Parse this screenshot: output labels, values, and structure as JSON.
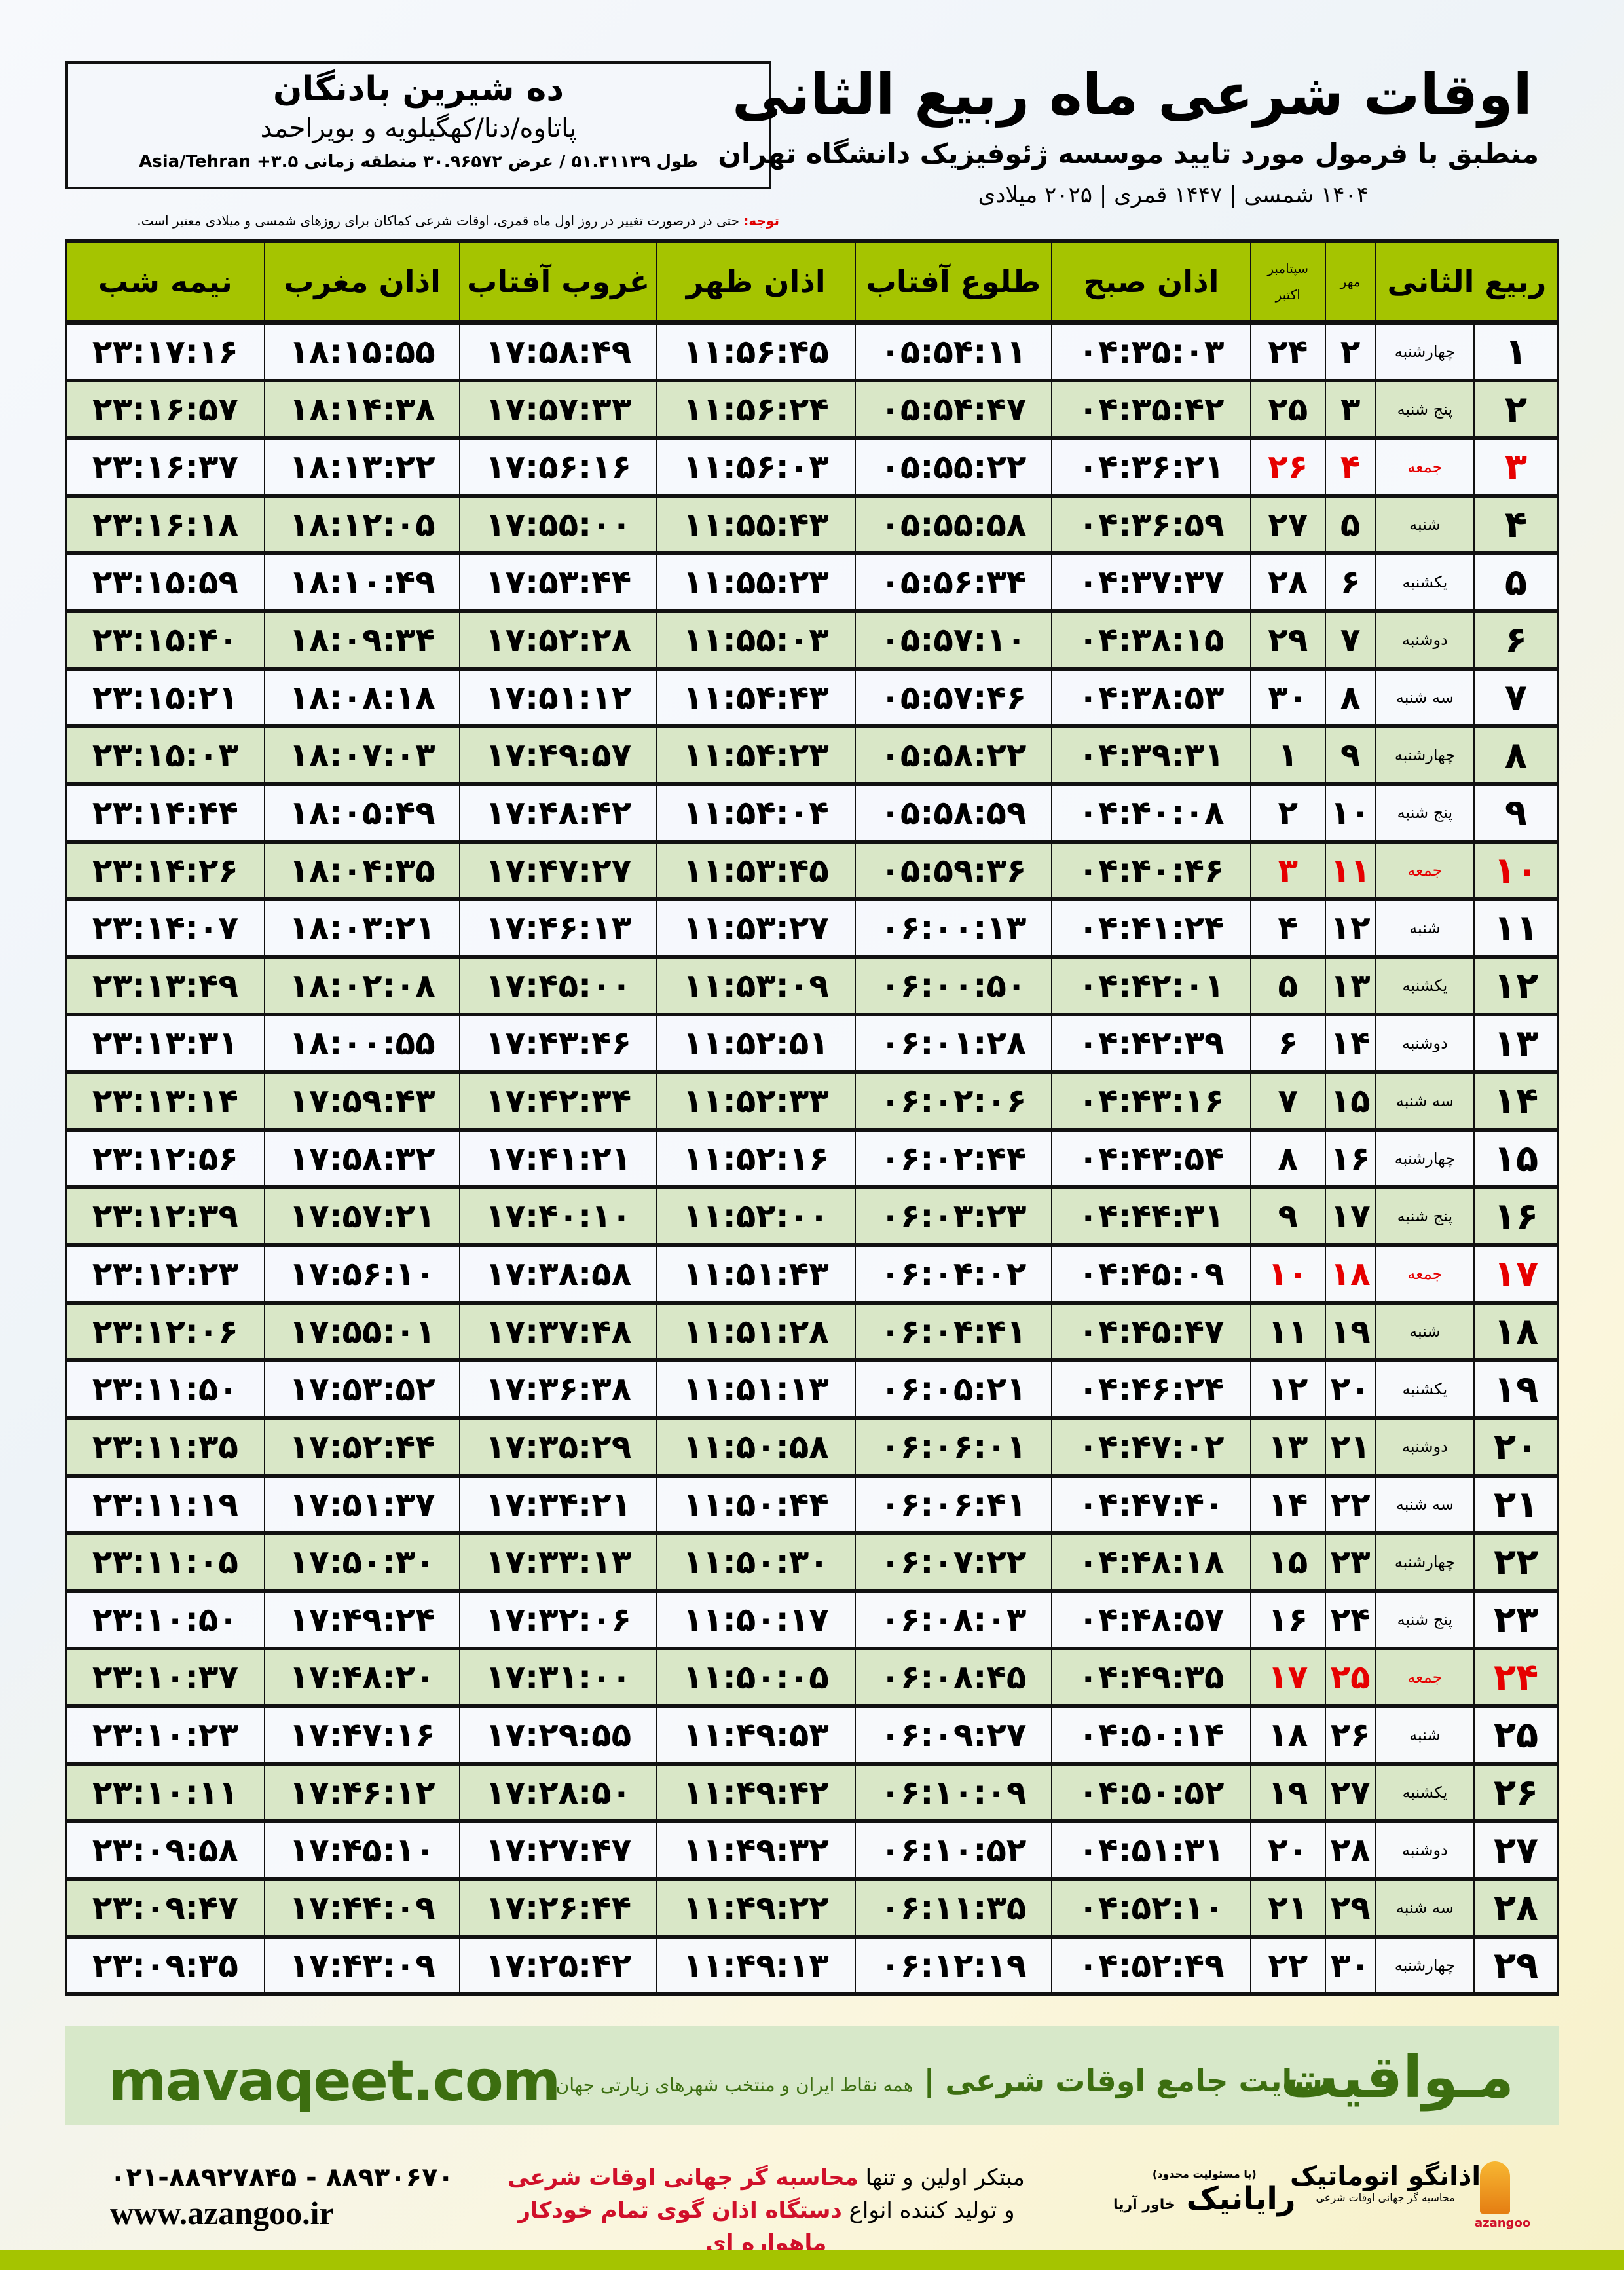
{
  "header": {
    "title": "اوقات شرعی ماه ربیع الثانی",
    "subtitle": "منطبق با فرمول مورد تایید موسسه ژئوفیزیک دانشگاه تهران",
    "years": "۱۴۰۴ شمسی | ۱۴۴۷ قمری | ۲۰۲۵ میلادی"
  },
  "location": {
    "city": "ده شیرین بادنگان",
    "province": "پاتاوه/دنا/کهگیلویه و بویراحمد",
    "coords": "طول ۵۱.۳۱۱۳۹ / عرض ۳۰.۹۶۵۷۲ منطقه زمانی Asia/Tehran +۳.۵"
  },
  "note": {
    "label": "توجه:",
    "text": " حتی در درصورت تغییر در روز اول ماه قمری، اوقات شرعی کماکان برای روزهای شمسی و میلادی معتبر است."
  },
  "table": {
    "headers": {
      "month": "ربیع الثانی",
      "mehr": "مهر",
      "sep": "سپتامبر",
      "oct": "اکتبر",
      "sobh": "اذان صبح",
      "tolu": "طلوع آفتاب",
      "zohr": "اذان ظهر",
      "ghorub": "غروب آفتاب",
      "maghreb": "اذان مغرب",
      "nime": "نیمه شب"
    },
    "holiday_color": "#e60000",
    "rows": [
      {
        "day": "۱",
        "weekday": "چهارشنبه",
        "shamsi": "۲",
        "miladi": "۲۴",
        "sobh": "۰۴:۳۵:۰۳",
        "tolu": "۰۵:۵۴:۱۱",
        "zohr": "۱۱:۵۶:۴۵",
        "ghorub": "۱۷:۵۸:۴۹",
        "maghreb": "۱۸:۱۵:۵۵",
        "nime": "۲۳:۱۷:۱۶",
        "holiday": false
      },
      {
        "day": "۲",
        "weekday": "پنج شنبه",
        "shamsi": "۳",
        "miladi": "۲۵",
        "sobh": "۰۴:۳۵:۴۲",
        "tolu": "۰۵:۵۴:۴۷",
        "zohr": "۱۱:۵۶:۲۴",
        "ghorub": "۱۷:۵۷:۳۳",
        "maghreb": "۱۸:۱۴:۳۸",
        "nime": "۲۳:۱۶:۵۷",
        "holiday": false
      },
      {
        "day": "۳",
        "weekday": "جمعه",
        "shamsi": "۴",
        "miladi": "۲۶",
        "sobh": "۰۴:۳۶:۲۱",
        "tolu": "۰۵:۵۵:۲۲",
        "zohr": "۱۱:۵۶:۰۳",
        "ghorub": "۱۷:۵۶:۱۶",
        "maghreb": "۱۸:۱۳:۲۲",
        "nime": "۲۳:۱۶:۳۷",
        "holiday": true
      },
      {
        "day": "۴",
        "weekday": "شنبه",
        "shamsi": "۵",
        "miladi": "۲۷",
        "sobh": "۰۴:۳۶:۵۹",
        "tolu": "۰۵:۵۵:۵۸",
        "zohr": "۱۱:۵۵:۴۳",
        "ghorub": "۱۷:۵۵:۰۰",
        "maghreb": "۱۸:۱۲:۰۵",
        "nime": "۲۳:۱۶:۱۸",
        "holiday": false
      },
      {
        "day": "۵",
        "weekday": "یکشنبه",
        "shamsi": "۶",
        "miladi": "۲۸",
        "sobh": "۰۴:۳۷:۳۷",
        "tolu": "۰۵:۵۶:۳۴",
        "zohr": "۱۱:۵۵:۲۳",
        "ghorub": "۱۷:۵۳:۴۴",
        "maghreb": "۱۸:۱۰:۴۹",
        "nime": "۲۳:۱۵:۵۹",
        "holiday": false
      },
      {
        "day": "۶",
        "weekday": "دوشنبه",
        "shamsi": "۷",
        "miladi": "۲۹",
        "sobh": "۰۴:۳۸:۱۵",
        "tolu": "۰۵:۵۷:۱۰",
        "zohr": "۱۱:۵۵:۰۳",
        "ghorub": "۱۷:۵۲:۲۸",
        "maghreb": "۱۸:۰۹:۳۴",
        "nime": "۲۳:۱۵:۴۰",
        "holiday": false
      },
      {
        "day": "۷",
        "weekday": "سه شنبه",
        "shamsi": "۸",
        "miladi": "۳۰",
        "sobh": "۰۴:۳۸:۵۳",
        "tolu": "۰۵:۵۷:۴۶",
        "zohr": "۱۱:۵۴:۴۳",
        "ghorub": "۱۷:۵۱:۱۲",
        "maghreb": "۱۸:۰۸:۱۸",
        "nime": "۲۳:۱۵:۲۱",
        "holiday": false
      },
      {
        "day": "۸",
        "weekday": "چهارشنبه",
        "shamsi": "۹",
        "miladi": "۱",
        "sobh": "۰۴:۳۹:۳۱",
        "tolu": "۰۵:۵۸:۲۲",
        "zohr": "۱۱:۵۴:۲۳",
        "ghorub": "۱۷:۴۹:۵۷",
        "maghreb": "۱۸:۰۷:۰۳",
        "nime": "۲۳:۱۵:۰۳",
        "holiday": false
      },
      {
        "day": "۹",
        "weekday": "پنج شنبه",
        "shamsi": "۱۰",
        "miladi": "۲",
        "sobh": "۰۴:۴۰:۰۸",
        "tolu": "۰۵:۵۸:۵۹",
        "zohr": "۱۱:۵۴:۰۴",
        "ghorub": "۱۷:۴۸:۴۲",
        "maghreb": "۱۸:۰۵:۴۹",
        "nime": "۲۳:۱۴:۴۴",
        "holiday": false
      },
      {
        "day": "۱۰",
        "weekday": "جمعه",
        "shamsi": "۱۱",
        "miladi": "۳",
        "sobh": "۰۴:۴۰:۴۶",
        "tolu": "۰۵:۵۹:۳۶",
        "zohr": "۱۱:۵۳:۴۵",
        "ghorub": "۱۷:۴۷:۲۷",
        "maghreb": "۱۸:۰۴:۳۵",
        "nime": "۲۳:۱۴:۲۶",
        "holiday": true
      },
      {
        "day": "۱۱",
        "weekday": "شنبه",
        "shamsi": "۱۲",
        "miladi": "۴",
        "sobh": "۰۴:۴۱:۲۴",
        "tolu": "۰۶:۰۰:۱۳",
        "zohr": "۱۱:۵۳:۲۷",
        "ghorub": "۱۷:۴۶:۱۳",
        "maghreb": "۱۸:۰۳:۲۱",
        "nime": "۲۳:۱۴:۰۷",
        "holiday": false
      },
      {
        "day": "۱۲",
        "weekday": "یکشنبه",
        "shamsi": "۱۳",
        "miladi": "۵",
        "sobh": "۰۴:۴۲:۰۱",
        "tolu": "۰۶:۰۰:۵۰",
        "zohr": "۱۱:۵۳:۰۹",
        "ghorub": "۱۷:۴۵:۰۰",
        "maghreb": "۱۸:۰۲:۰۸",
        "nime": "۲۳:۱۳:۴۹",
        "holiday": false
      },
      {
        "day": "۱۳",
        "weekday": "دوشنبه",
        "shamsi": "۱۴",
        "miladi": "۶",
        "sobh": "۰۴:۴۲:۳۹",
        "tolu": "۰۶:۰۱:۲۸",
        "zohr": "۱۱:۵۲:۵۱",
        "ghorub": "۱۷:۴۳:۴۶",
        "maghreb": "۱۸:۰۰:۵۵",
        "nime": "۲۳:۱۳:۳۱",
        "holiday": false
      },
      {
        "day": "۱۴",
        "weekday": "سه شنبه",
        "shamsi": "۱۵",
        "miladi": "۷",
        "sobh": "۰۴:۴۳:۱۶",
        "tolu": "۰۶:۰۲:۰۶",
        "zohr": "۱۱:۵۲:۳۳",
        "ghorub": "۱۷:۴۲:۳۴",
        "maghreb": "۱۷:۵۹:۴۳",
        "nime": "۲۳:۱۳:۱۴",
        "holiday": false
      },
      {
        "day": "۱۵",
        "weekday": "چهارشنبه",
        "shamsi": "۱۶",
        "miladi": "۸",
        "sobh": "۰۴:۴۳:۵۴",
        "tolu": "۰۶:۰۲:۴۴",
        "zohr": "۱۱:۵۲:۱۶",
        "ghorub": "۱۷:۴۱:۲۱",
        "maghreb": "۱۷:۵۸:۳۲",
        "nime": "۲۳:۱۲:۵۶",
        "holiday": false
      },
      {
        "day": "۱۶",
        "weekday": "پنج شنبه",
        "shamsi": "۱۷",
        "miladi": "۹",
        "sobh": "۰۴:۴۴:۳۱",
        "tolu": "۰۶:۰۳:۲۳",
        "zohr": "۱۱:۵۲:۰۰",
        "ghorub": "۱۷:۴۰:۱۰",
        "maghreb": "۱۷:۵۷:۲۱",
        "nime": "۲۳:۱۲:۳۹",
        "holiday": false
      },
      {
        "day": "۱۷",
        "weekday": "جمعه",
        "shamsi": "۱۸",
        "miladi": "۱۰",
        "sobh": "۰۴:۴۵:۰۹",
        "tolu": "۰۶:۰۴:۰۲",
        "zohr": "۱۱:۵۱:۴۳",
        "ghorub": "۱۷:۳۸:۵۸",
        "maghreb": "۱۷:۵۶:۱۰",
        "nime": "۲۳:۱۲:۲۳",
        "holiday": true
      },
      {
        "day": "۱۸",
        "weekday": "شنبه",
        "shamsi": "۱۹",
        "miladi": "۱۱",
        "sobh": "۰۴:۴۵:۴۷",
        "tolu": "۰۶:۰۴:۴۱",
        "zohr": "۱۱:۵۱:۲۸",
        "ghorub": "۱۷:۳۷:۴۸",
        "maghreb": "۱۷:۵۵:۰۱",
        "nime": "۲۳:۱۲:۰۶",
        "holiday": false
      },
      {
        "day": "۱۹",
        "weekday": "یکشنبه",
        "shamsi": "۲۰",
        "miladi": "۱۲",
        "sobh": "۰۴:۴۶:۲۴",
        "tolu": "۰۶:۰۵:۲۱",
        "zohr": "۱۱:۵۱:۱۳",
        "ghorub": "۱۷:۳۶:۳۸",
        "maghreb": "۱۷:۵۳:۵۲",
        "nime": "۲۳:۱۱:۵۰",
        "holiday": false
      },
      {
        "day": "۲۰",
        "weekday": "دوشنبه",
        "shamsi": "۲۱",
        "miladi": "۱۳",
        "sobh": "۰۴:۴۷:۰۲",
        "tolu": "۰۶:۰۶:۰۱",
        "zohr": "۱۱:۵۰:۵۸",
        "ghorub": "۱۷:۳۵:۲۹",
        "maghreb": "۱۷:۵۲:۴۴",
        "nime": "۲۳:۱۱:۳۵",
        "holiday": false
      },
      {
        "day": "۲۱",
        "weekday": "سه شنبه",
        "shamsi": "۲۲",
        "miladi": "۱۴",
        "sobh": "۰۴:۴۷:۴۰",
        "tolu": "۰۶:۰۶:۴۱",
        "zohr": "۱۱:۵۰:۴۴",
        "ghorub": "۱۷:۳۴:۲۱",
        "maghreb": "۱۷:۵۱:۳۷",
        "nime": "۲۳:۱۱:۱۹",
        "holiday": false
      },
      {
        "day": "۲۲",
        "weekday": "چهارشنبه",
        "shamsi": "۲۳",
        "miladi": "۱۵",
        "sobh": "۰۴:۴۸:۱۸",
        "tolu": "۰۶:۰۷:۲۲",
        "zohr": "۱۱:۵۰:۳۰",
        "ghorub": "۱۷:۳۳:۱۳",
        "maghreb": "۱۷:۵۰:۳۰",
        "nime": "۲۳:۱۱:۰۵",
        "holiday": false
      },
      {
        "day": "۲۳",
        "weekday": "پنج شنبه",
        "shamsi": "۲۴",
        "miladi": "۱۶",
        "sobh": "۰۴:۴۸:۵۷",
        "tolu": "۰۶:۰۸:۰۳",
        "zohr": "۱۱:۵۰:۱۷",
        "ghorub": "۱۷:۳۲:۰۶",
        "maghreb": "۱۷:۴۹:۲۴",
        "nime": "۲۳:۱۰:۵۰",
        "holiday": false
      },
      {
        "day": "۲۴",
        "weekday": "جمعه",
        "shamsi": "۲۵",
        "miladi": "۱۷",
        "sobh": "۰۴:۴۹:۳۵",
        "tolu": "۰۶:۰۸:۴۵",
        "zohr": "۱۱:۵۰:۰۵",
        "ghorub": "۱۷:۳۱:۰۰",
        "maghreb": "۱۷:۴۸:۲۰",
        "nime": "۲۳:۱۰:۳۷",
        "holiday": true
      },
      {
        "day": "۲۵",
        "weekday": "شنبه",
        "shamsi": "۲۶",
        "miladi": "۱۸",
        "sobh": "۰۴:۵۰:۱۴",
        "tolu": "۰۶:۰۹:۲۷",
        "zohr": "۱۱:۴۹:۵۳",
        "ghorub": "۱۷:۲۹:۵۵",
        "maghreb": "۱۷:۴۷:۱۶",
        "nime": "۲۳:۱۰:۲۳",
        "holiday": false
      },
      {
        "day": "۲۶",
        "weekday": "یکشنبه",
        "shamsi": "۲۷",
        "miladi": "۱۹",
        "sobh": "۰۴:۵۰:۵۲",
        "tolu": "۰۶:۱۰:۰۹",
        "zohr": "۱۱:۴۹:۴۲",
        "ghorub": "۱۷:۲۸:۵۰",
        "maghreb": "۱۷:۴۶:۱۲",
        "nime": "۲۳:۱۰:۱۱",
        "holiday": false
      },
      {
        "day": "۲۷",
        "weekday": "دوشنبه",
        "shamsi": "۲۸",
        "miladi": "۲۰",
        "sobh": "۰۴:۵۱:۳۱",
        "tolu": "۰۶:۱۰:۵۲",
        "zohr": "۱۱:۴۹:۳۲",
        "ghorub": "۱۷:۲۷:۴۷",
        "maghreb": "۱۷:۴۵:۱۰",
        "nime": "۲۳:۰۹:۵۸",
        "holiday": false
      },
      {
        "day": "۲۸",
        "weekday": "سه شنبه",
        "shamsi": "۲۹",
        "miladi": "۲۱",
        "sobh": "۰۴:۵۲:۱۰",
        "tolu": "۰۶:۱۱:۳۵",
        "zohr": "۱۱:۴۹:۲۲",
        "ghorub": "۱۷:۲۶:۴۴",
        "maghreb": "۱۷:۴۴:۰۹",
        "nime": "۲۳:۰۹:۴۷",
        "holiday": false
      },
      {
        "day": "۲۹",
        "weekday": "چهارشنبه",
        "shamsi": "۳۰",
        "miladi": "۲۲",
        "sobh": "۰۴:۵۲:۴۹",
        "tolu": "۰۶:۱۲:۱۹",
        "zohr": "۱۱:۴۹:۱۳",
        "ghorub": "۱۷:۲۵:۴۲",
        "maghreb": "۱۷:۴۳:۰۹",
        "nime": "۲۳:۰۹:۳۵",
        "holiday": false
      }
    ]
  },
  "footer": {
    "brand": "مـواقیت",
    "tagline": "سایت جامع اوقات شرعی",
    "tagline_sub": "همه نقاط ایران و منتخب شهرهای زیارتی جهان",
    "site": "mavaqeet.com",
    "phone": "۰۲۱-۸۸۹۲۷۸۴۵ - ۸۸۹۳۰۶۷۰",
    "web": "www.azangoo.ir",
    "promo1_a": "مبتکر اولین و تنها ",
    "promo1_b": "محاسبه گر جهانی اوقات شرعی",
    "promo2_a": "و تولید کننده انواع ",
    "promo2_b": "دستگاه اذان گوی تمام خودکار ماهواره ای",
    "rayanik_small": "(با مسئولیت محدود)",
    "rayanik": "رایانیک",
    "rayanik_sub": "خاور آریا",
    "azangoo": "اذانگو اتوماتیک",
    "azangoo_sub": "محاسبه گر جهانی اوقات شرعی",
    "azangoo_latin": "azangoo"
  }
}
